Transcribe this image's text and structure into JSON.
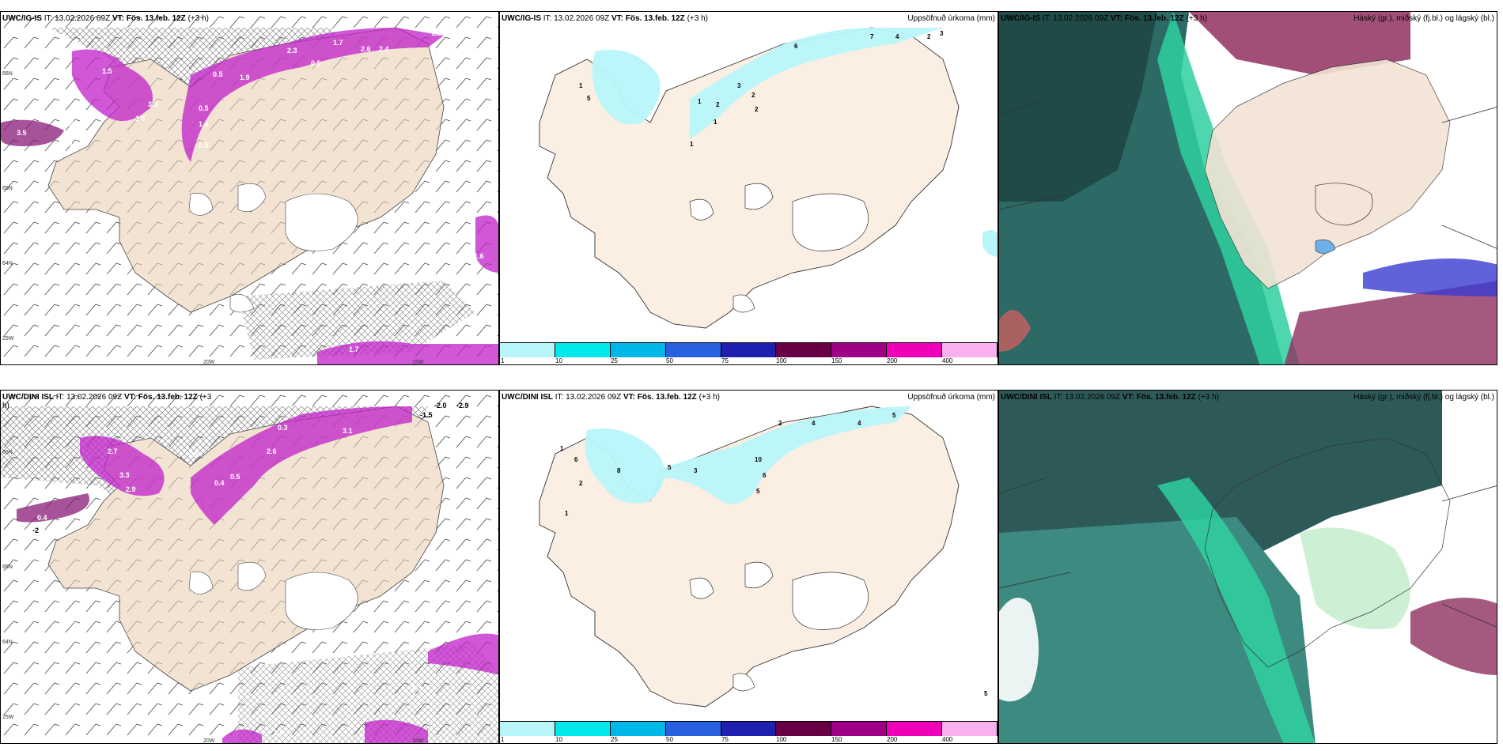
{
  "panels": [
    {
      "id": "p1",
      "model": "UWC/IG-IS",
      "it_label": "IT:",
      "it": "13.02.2026 09Z",
      "vt_label": "VT:",
      "vt": "Fös. 13.feb. 12Z",
      "lead": "(+3 h)",
      "right_title": "",
      "axis_labels": [
        "66N",
        "65N",
        "64N",
        "25W",
        "20W",
        "15W"
      ],
      "precip_labels": [
        "3.5",
        "0.4",
        "0.5",
        "2.3",
        "1.7",
        "2.6",
        "2.4",
        "2.3",
        "0.5",
        "1.5",
        "0.5",
        "1.9",
        "3.3",
        "1.6",
        "0.5",
        "1.4",
        "0.5",
        "1.6",
        "1.7"
      ]
    },
    {
      "id": "p2",
      "model": "UWC/IG-IS",
      "it_label": "IT:",
      "it": "13.02.2026 09Z",
      "vt_label": "VT:",
      "vt": "Fös. 13.feb. 12Z",
      "lead": "(+3 h)",
      "right_title": "Uppsöfnuð úrkoma (mm)",
      "contour_labels": [
        "6",
        "7",
        "4",
        "2",
        "3",
        "1",
        "2",
        "3",
        "2",
        "2",
        "1",
        "1",
        "1",
        "5"
      ]
    },
    {
      "id": "p3",
      "model": "UWC/IG-IS",
      "it_label": "IT:",
      "it": "13.02.2026 09Z",
      "vt_label": "VT:",
      "vt": "Fös. 13.feb. 12Z",
      "lead": "(+3 h)",
      "right_title": "Háský (gr.), miðský (fj.bl.) og lágský (bl.)"
    },
    {
      "id": "p4",
      "model": "UWC/DINI ISL",
      "it_label": "IT:",
      "it": "13.02.2026 09Z",
      "vt_label": "VT:",
      "vt": "Fös. 13.feb. 12Z",
      "lead": "(+3",
      "lead2": "h)",
      "right_title": "",
      "axis_labels": [
        "66N",
        "65N",
        "64N",
        "25W",
        "20W",
        "15W"
      ],
      "precip_labels": [
        "-2.0",
        "-2.9",
        "-1.5",
        "0.3",
        "3.1",
        "2.6",
        "2.7",
        "0.5",
        "3.3",
        "2.9",
        "0.4",
        "0.5",
        "0.4",
        "2.6",
        "0.3",
        "-2"
      ]
    },
    {
      "id": "p5",
      "model": "UWC/DINI ISL",
      "it_label": "IT:",
      "it": "13.02.2026 09Z",
      "vt_label": "VT:",
      "vt": "Fös. 13.feb. 12Z",
      "lead": "(+3 h)",
      "right_title": "Uppsöfnuð úrkoma (mm)",
      "contour_labels": [
        "2",
        "4",
        "4",
        "5",
        "1",
        "6",
        "8",
        "5",
        "3",
        "10",
        "6",
        "5",
        "2",
        "1",
        "5"
      ]
    },
    {
      "id": "p6",
      "model": "UWC/DINI ISL",
      "it_label": "IT:",
      "it": "13.02.2026 09Z",
      "vt_label": "VT:",
      "vt": "Fös. 13.feb. 12Z",
      "lead": "(+3 h)",
      "right_title": "Háský (gr.), miðský (fj.bl.) og lágský (bl.)"
    }
  ],
  "colorbar": {
    "colors": [
      "#b8f5f8",
      "#00e8ec",
      "#00b8e8",
      "#2860e0",
      "#2020b0",
      "#680048",
      "#a00088",
      "#f000b8",
      "#f8b0f0"
    ],
    "ticks": [
      "1",
      "10",
      "25",
      "50",
      "75",
      "100",
      "150",
      "200",
      "400"
    ]
  },
  "palette": {
    "land": "#f2e3d3",
    "land_precip": "#fbeee3",
    "precip_light": "#b8f6fa",
    "purple": "#c020c8",
    "dark_teal": "#2d6060",
    "green": "#2fd0a0",
    "mauve": "#903060"
  }
}
